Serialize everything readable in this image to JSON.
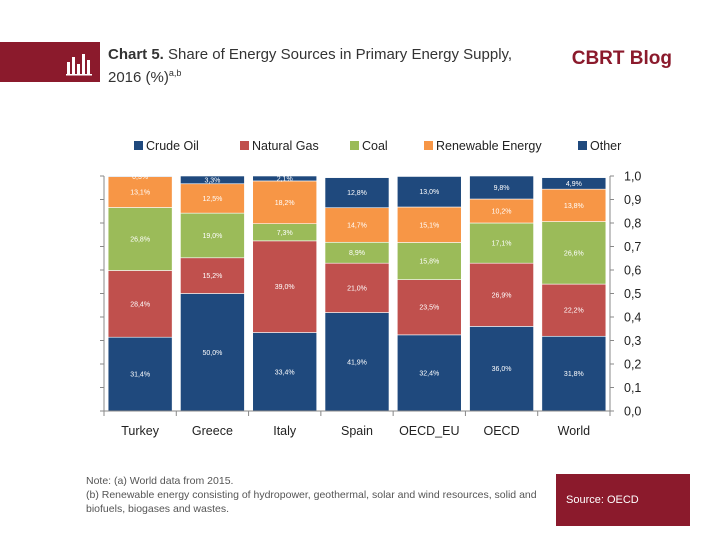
{
  "header": {
    "title_bold": "Chart 5.",
    "title_rest": " Share of Energy Sources in Primary Energy Supply, 2016 (%)",
    "title_sup": "a,b",
    "brand": "CBRT Blog"
  },
  "notes": {
    "line1": "Note: (a) World data from 2015.",
    "line2": "(b) Renewable energy consisting of hydropower, geothermal, solar and wind resources, solid and biofuels, biogases and wastes."
  },
  "source": "Source: OECD",
  "colors": {
    "header": "#8b1a2c",
    "crude_oil": "#1f497d",
    "natural_gas": "#c0504d",
    "coal": "#9bbb59",
    "renewable": "#f79646",
    "other": "#1f497d"
  },
  "chart_data": {
    "type": "bar",
    "stacked": true,
    "title": "",
    "xlabel": "",
    "ylabel": "",
    "ylim": [
      0,
      1.0
    ],
    "yticks": [
      "0,0",
      "0,1",
      "0,2",
      "0,3",
      "0,4",
      "0,5",
      "0,6",
      "0,7",
      "0,8",
      "0,9",
      "1,0"
    ],
    "y_axis_side": "right",
    "legend_position": "top",
    "grid": false,
    "categories": [
      "Turkey",
      "Greece",
      "Italy",
      "Spain",
      "OECD_EU",
      "OECD",
      "World"
    ],
    "series": [
      {
        "name": "Crude Oil",
        "color": "#1f497d",
        "values": [
          0.314,
          0.5,
          0.334,
          0.419,
          0.324,
          0.36,
          0.318
        ],
        "labels": [
          "31,4%",
          "50,0%",
          "33,4%",
          "41,9%",
          "32,4%",
          "36,0%",
          "31,8%"
        ]
      },
      {
        "name": "Natural Gas",
        "color": "#c0504d",
        "values": [
          0.284,
          0.152,
          0.39,
          0.21,
          0.235,
          0.269,
          0.222
        ],
        "labels": [
          "28,4%",
          "15,2%",
          "39,0%",
          "21,0%",
          "23,5%",
          "26,9%",
          "22,2%"
        ]
      },
      {
        "name": "Coal",
        "color": "#9bbb59",
        "values": [
          0.268,
          0.19,
          0.073,
          0.089,
          0.158,
          0.171,
          0.266
        ],
        "labels": [
          "26,8%",
          "19,0%",
          "7,3%",
          "8,9%",
          "15,8%",
          "17,1%",
          "26,6%"
        ]
      },
      {
        "name": "Renewable Energy",
        "color": "#f79646",
        "values": [
          0.131,
          0.125,
          0.182,
          0.147,
          0.151,
          0.102,
          0.138
        ],
        "labels": [
          "13,1%",
          "12,5%",
          "18,2%",
          "14,7%",
          "15,1%",
          "10,2%",
          "13,8%"
        ]
      },
      {
        "name": "Other",
        "color": "#1f497d",
        "values": [
          0.003,
          0.033,
          0.021,
          0.128,
          0.13,
          0.098,
          0.049
        ],
        "labels": [
          "0,3%",
          "3,3%",
          "2,1%",
          "12,8%",
          "13,0%",
          "9,8%",
          "4,9%"
        ]
      }
    ]
  }
}
